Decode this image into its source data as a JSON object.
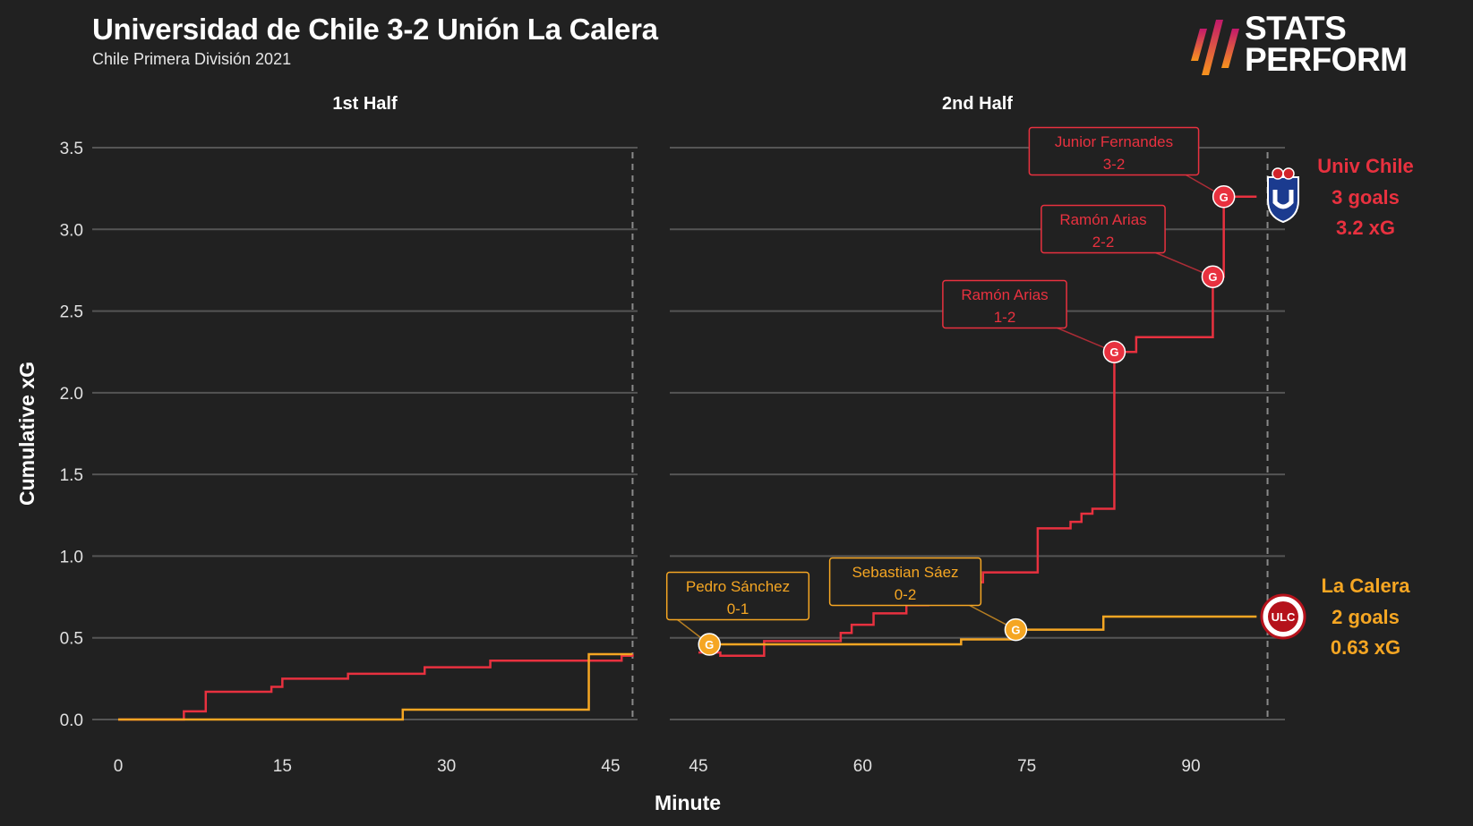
{
  "header": {
    "title": "Universidad de Chile 3-2 Unión La Calera",
    "subtitle": "Chile Primera División 2021"
  },
  "brand": {
    "line1": "STATS",
    "line2": "PERFORM",
    "logo_icon": "stats-perform-stripes-logo"
  },
  "colors": {
    "home": "#e8313f",
    "away": "#f5a623",
    "background": "#212121",
    "grid": "#555555",
    "text": "#ffffff"
  },
  "chart_data": {
    "type": "line",
    "step": true,
    "ylabel": "Cumulative xG",
    "xlabel": "Minute",
    "ylim": [
      0,
      3.5
    ],
    "yticks": [
      "0.0",
      "0.5",
      "1.0",
      "1.5",
      "2.0",
      "2.5",
      "3.0",
      "3.5"
    ],
    "grid": true,
    "panels": [
      {
        "label": "1st Half",
        "xlim": [
          -2,
          48
        ],
        "xticks": [
          "0",
          "15",
          "30",
          "45"
        ],
        "end_marker": 47
      },
      {
        "label": "2nd Half",
        "xlim": [
          45,
          98
        ],
        "xticks": [
          "45",
          "60",
          "75",
          "90"
        ],
        "end_marker": 97
      }
    ],
    "series": [
      {
        "team": "home",
        "end_label": [
          "Univ Chile",
          "3 goals",
          "3.2 xG"
        ],
        "badge_icon": "universidad-de-chile-crest-icon",
        "first_half": [
          [
            0,
            0
          ],
          [
            6,
            0.05
          ],
          [
            8,
            0.17
          ],
          [
            14,
            0.2
          ],
          [
            15,
            0.25
          ],
          [
            21,
            0.28
          ],
          [
            28,
            0.32
          ],
          [
            34,
            0.36
          ],
          [
            46,
            0.39
          ],
          [
            47,
            0.4
          ]
        ],
        "second_half": [
          [
            45,
            0.41
          ],
          [
            47,
            0.39
          ],
          [
            51,
            0.48
          ],
          [
            58,
            0.53
          ],
          [
            59,
            0.58
          ],
          [
            61,
            0.65
          ],
          [
            64,
            0.7
          ],
          [
            66,
            0.79
          ],
          [
            69,
            0.84
          ],
          [
            71,
            0.9
          ],
          [
            76,
            1.17
          ],
          [
            79,
            1.21
          ],
          [
            80,
            1.26
          ],
          [
            81,
            1.29
          ],
          [
            83,
            2.25
          ],
          [
            85,
            2.34
          ],
          [
            92,
            2.71
          ],
          [
            93,
            3.2
          ],
          [
            96,
            3.2
          ]
        ],
        "goals": [
          {
            "minute": 83,
            "xg": 2.25,
            "scorer": "Ramón Arias",
            "score": "1-2"
          },
          {
            "minute": 92,
            "xg": 2.71,
            "scorer": "Ramón Arias",
            "score": "2-2"
          },
          {
            "minute": 93,
            "xg": 3.2,
            "scorer": "Junior Fernandes",
            "score": "3-2"
          }
        ]
      },
      {
        "team": "away",
        "end_label": [
          "La Calera",
          "2 goals",
          "0.63 xG"
        ],
        "badge_icon": "union-la-calera-crest-icon",
        "badge_text": "ULC",
        "first_half": [
          [
            0,
            0
          ],
          [
            26,
            0.06
          ],
          [
            43,
            0.4
          ],
          [
            47,
            0.4
          ]
        ],
        "second_half": [
          [
            45,
            0.46
          ],
          [
            69,
            0.49
          ],
          [
            74,
            0.55
          ],
          [
            82,
            0.63
          ],
          [
            96,
            0.63
          ]
        ],
        "goals": [
          {
            "minute": 46,
            "xg": 0.46,
            "scorer": "Pedro Sánchez",
            "score": "0-1"
          },
          {
            "minute": 74,
            "xg": 0.55,
            "scorer": "Sebastian Sáez",
            "score": "0-2"
          }
        ]
      }
    ],
    "goal_marker_text": "G"
  }
}
